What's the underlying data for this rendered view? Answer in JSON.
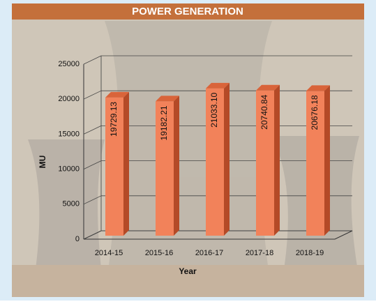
{
  "chart_data": {
    "type": "bar",
    "title": "POWER GENERATION",
    "x_label": "Year",
    "y_label": "MU",
    "categories": [
      "2014-15",
      "2015-16",
      "2016-17",
      "2017-18",
      "2018-19"
    ],
    "values": [
      19729.13,
      19182.21,
      21033.1,
      20740.84,
      20676.18
    ],
    "value_labels": [
      "19729.13",
      "19182.21",
      "21033.10",
      "20740.84",
      "20676.18"
    ],
    "color": "#f2825a",
    "ylim": [
      0,
      25000
    ],
    "yticks": [
      0,
      5000,
      10000,
      15000,
      20000,
      25000
    ],
    "grid": true
  }
}
